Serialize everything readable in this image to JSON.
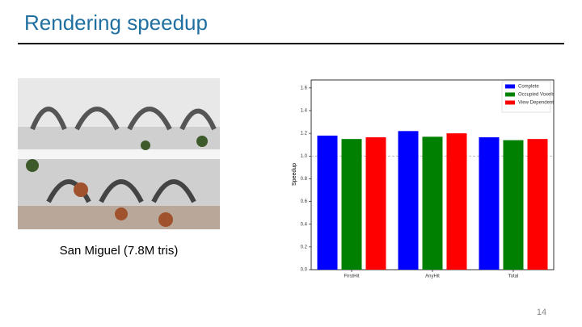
{
  "slide": {
    "title": "Rendering speedup",
    "image_caption": "San Miguel (7.8M tris)",
    "page_number": "14"
  },
  "chart_data": {
    "type": "bar",
    "y_label": "Speedup",
    "categories": [
      "FirstHit",
      "AnyHit",
      "Total"
    ],
    "series": [
      {
        "name": "Complete",
        "color": "#0000ff",
        "values": [
          1.18,
          1.22,
          1.165
        ]
      },
      {
        "name": "Occupied Voxels",
        "color": "#008000",
        "values": [
          1.15,
          1.17,
          1.14
        ]
      },
      {
        "name": "View Dependent",
        "color": "#ff0000",
        "values": [
          1.165,
          1.2,
          1.15
        ]
      }
    ],
    "ylim": [
      0,
      1.67
    ],
    "yticks": [
      {
        "value": 0,
        "label": "0.0"
      },
      0.2,
      0.4,
      0.6,
      0.8,
      {
        "value": 1,
        "label": "1.0"
      },
      1.2,
      1.4,
      1.6
    ],
    "reference_line": 1,
    "legend": "upper right"
  }
}
